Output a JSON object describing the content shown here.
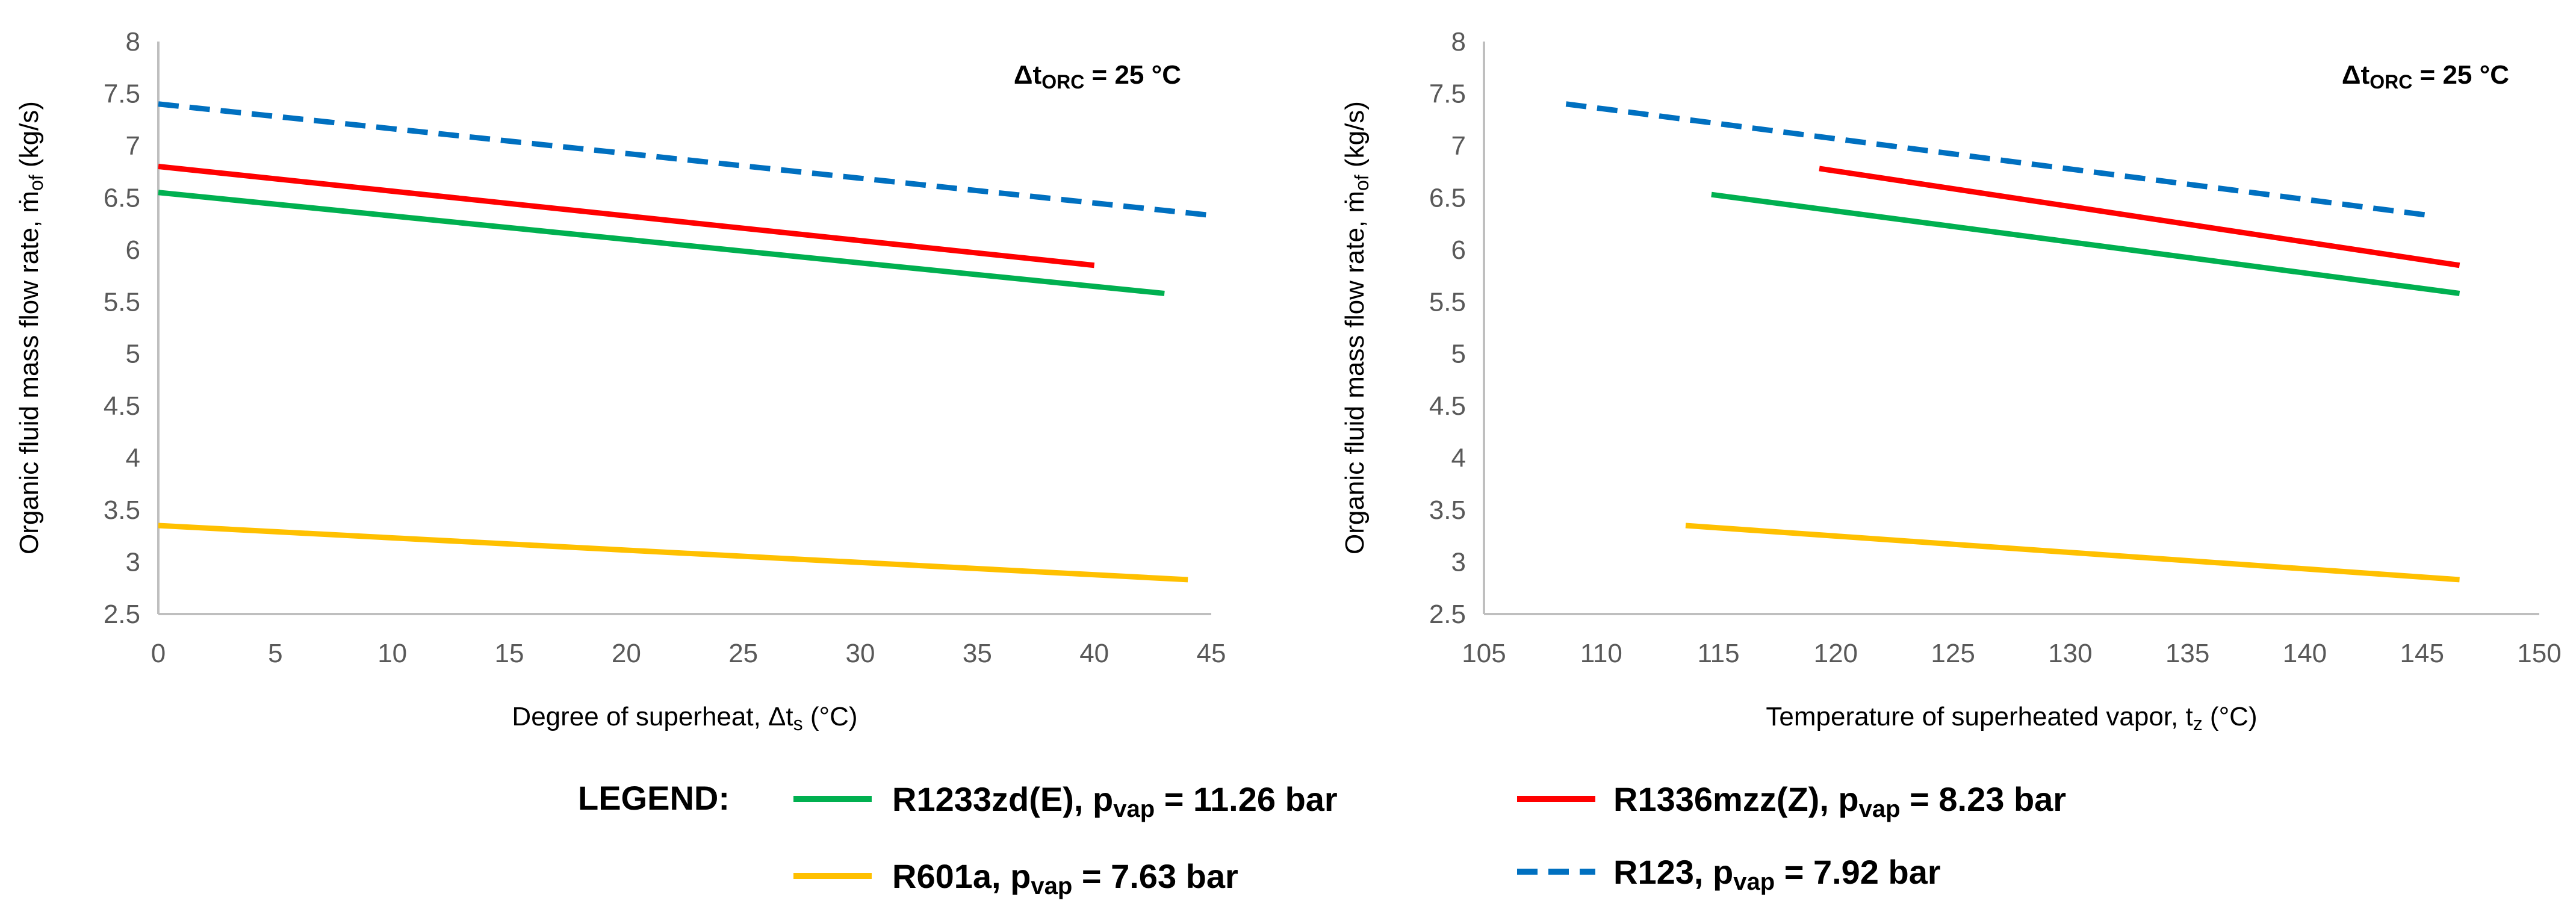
{
  "chart_data": [
    {
      "type": "line",
      "title": "",
      "annotation": {
        "delta": "Δt",
        "sub": "ORC",
        "rest": " = 25 °C"
      },
      "xlabel": {
        "main": "Degree of superheat, Δt",
        "sub": "s",
        "tail": " (°C)"
      },
      "ylabel": {
        "main": "Organic fluid mass flow rate, ṁ",
        "sub": "of",
        "tail": " (kg/s)"
      },
      "xlim": [
        0,
        45
      ],
      "ylim": [
        2.5,
        8
      ],
      "xticks": [
        0,
        5,
        10,
        15,
        20,
        25,
        30,
        35,
        40,
        45
      ],
      "yticks": [
        2.5,
        3,
        3.5,
        4,
        4.5,
        5,
        5.5,
        6,
        6.5,
        7,
        7.5,
        8
      ],
      "series": [
        {
          "name": "R1233zd(E)",
          "color": "#00B050",
          "dash": false,
          "x": [
            0,
            43
          ],
          "y": [
            6.55,
            5.58
          ]
        },
        {
          "name": "R1336mzz(Z)",
          "color": "#FF0000",
          "dash": false,
          "x": [
            0,
            40
          ],
          "y": [
            6.8,
            5.85
          ]
        },
        {
          "name": "R601a",
          "color": "#FFC000",
          "dash": false,
          "x": [
            0,
            44
          ],
          "y": [
            3.35,
            2.83
          ]
        },
        {
          "name": "R123",
          "color": "#0070C0",
          "dash": true,
          "x": [
            0,
            45
          ],
          "y": [
            7.4,
            6.33
          ]
        }
      ]
    },
    {
      "type": "line",
      "title": "",
      "annotation": {
        "delta": "Δt",
        "sub": "ORC",
        "rest": " = 25 °C"
      },
      "xlabel": {
        "main": "Temperature of superheated vapor, t",
        "sub": "z",
        "tail": " (°C)"
      },
      "ylabel": {
        "main": "Organic fluid mass flow rate, ṁ",
        "sub": "of",
        "tail": " (kg/s)"
      },
      "xlim": [
        105,
        150
      ],
      "ylim": [
        2.5,
        8
      ],
      "xticks": [
        105,
        110,
        115,
        120,
        125,
        130,
        135,
        140,
        145,
        150
      ],
      "yticks": [
        2.5,
        3,
        3.5,
        4,
        4.5,
        5,
        5.5,
        6,
        6.5,
        7,
        7.5,
        8
      ],
      "series": [
        {
          "name": "R1233zd(E)",
          "color": "#00B050",
          "dash": false,
          "x": [
            114.7,
            146.6
          ],
          "y": [
            6.53,
            5.58
          ]
        },
        {
          "name": "R1336mzz(Z)",
          "color": "#FF0000",
          "dash": false,
          "x": [
            119.3,
            146.6
          ],
          "y": [
            6.78,
            5.85
          ]
        },
        {
          "name": "R601a",
          "color": "#FFC000",
          "dash": false,
          "x": [
            113.6,
            146.6
          ],
          "y": [
            3.35,
            2.83
          ]
        },
        {
          "name": "R123",
          "color": "#0070C0",
          "dash": true,
          "x": [
            108.5,
            145.3
          ],
          "y": [
            7.4,
            6.33
          ]
        }
      ]
    }
  ],
  "legend": {
    "heading": "LEGEND:",
    "items": [
      {
        "name": "R1233zd(E)",
        "prefix": "R1233zd(E), p",
        "sub": "vap",
        "suffix": " = 11.26 bar",
        "color": "#00B050",
        "dash": false
      },
      {
        "name": "R1336mzz(Z)",
        "prefix": "R1336mzz(Z), p",
        "sub": "vap",
        "suffix": " = 8.23 bar",
        "color": "#FF0000",
        "dash": false
      },
      {
        "name": "R601a",
        "prefix": "R601a, p",
        "sub": "vap",
        "suffix": " = 7.63 bar",
        "color": "#FFC000",
        "dash": false
      },
      {
        "name": "R123",
        "prefix": "R123, p",
        "sub": "vap",
        "suffix": " = 7.92 bar",
        "color": "#0070C0",
        "dash": true
      }
    ]
  }
}
